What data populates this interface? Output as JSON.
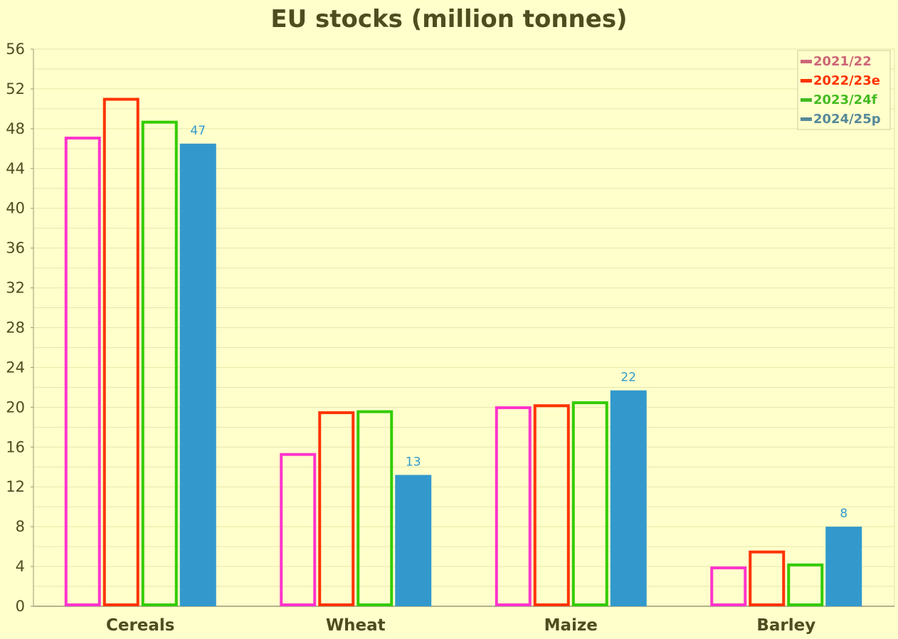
{
  "chart_data": {
    "type": "bar",
    "title": "EU stocks (million tonnes)",
    "xlabel": "",
    "ylabel": "",
    "categories": [
      "Cereals",
      "Wheat",
      "Maize",
      "Barley"
    ],
    "ylim": [
      0,
      56
    ],
    "yticks": [
      0,
      4,
      8,
      12,
      16,
      20,
      24,
      28,
      32,
      36,
      40,
      44,
      48,
      52,
      56
    ],
    "grid": true,
    "legend_position": "top-right",
    "series": [
      {
        "name": "2021/22",
        "values": [
          47.2,
          15.4,
          20.1,
          4.0
        ],
        "style": "outline",
        "color": "#ff33cc",
        "legend_color": "#cc6677"
      },
      {
        "name": "2022/23e",
        "values": [
          51.1,
          19.6,
          20.3,
          5.6
        ],
        "style": "outline",
        "color": "#ff3300",
        "legend_color": "#ff3300"
      },
      {
        "name": "2023/24f",
        "values": [
          48.8,
          19.7,
          20.6,
          4.3
        ],
        "style": "outline",
        "color": "#33cc00",
        "legend_color": "#44bb22"
      },
      {
        "name": "2024/25p",
        "values": [
          46.5,
          13.2,
          21.7,
          8.0
        ],
        "style": "filled",
        "color": "#3399cc",
        "legend_color": "#558899"
      }
    ],
    "data_labels": {
      "series": "2024/25p",
      "labels": [
        "47",
        "13",
        "22",
        "8"
      ]
    },
    "colors": {
      "background": "#ffffcc",
      "grid": "#e6e6a8",
      "text": "#4d4d1f",
      "axis": "#999977"
    }
  }
}
